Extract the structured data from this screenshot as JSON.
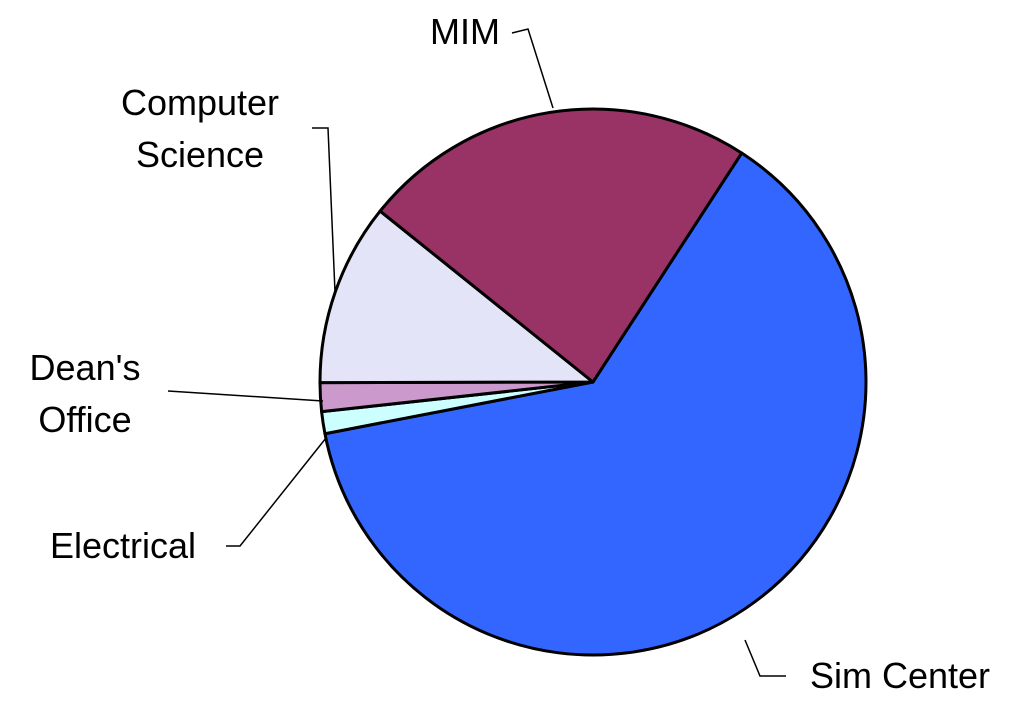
{
  "chart_data": {
    "type": "pie",
    "categories": [
      "Sim Center",
      "Electrical",
      "Dean's Office",
      "Computer Science",
      "MIM"
    ],
    "values": [
      62.8,
      1.3,
      1.7,
      10.8,
      23.4
    ],
    "colors": [
      "#3366ff",
      "#ccffff",
      "#cc99cc",
      "#e4e4f8",
      "#993366"
    ]
  }
}
